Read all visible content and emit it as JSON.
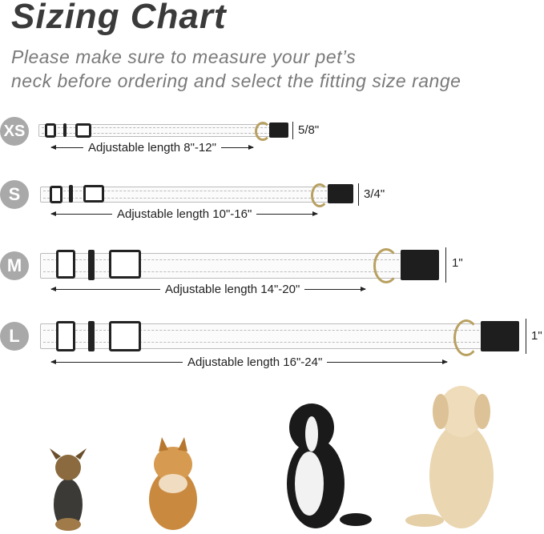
{
  "title": "Sizing Chart",
  "subtitle": [
    "Please make sure to measure your pet’s",
    "neck before ordering and select the fitting size range"
  ],
  "sizes": [
    {
      "label": "XS",
      "length": "Adjustable length 8\"-12\"",
      "width": "5/8\""
    },
    {
      "label": "S",
      "length": "Adjustable length 10\"-16\"",
      "width": "3/4\""
    },
    {
      "label": "M",
      "length": "Adjustable length 14\"-20\"",
      "width": "1\""
    },
    {
      "label": "L",
      "length": "Adjustable length 16\"-24\"",
      "width": "1\""
    }
  ],
  "colors": {
    "badge": "#a9a9a9",
    "title": "#3a3a3a",
    "ring": "#b8a060"
  },
  "dogs": [
    "yorkshire-terrier",
    "pomeranian",
    "border-collie",
    "golden-retriever"
  ]
}
